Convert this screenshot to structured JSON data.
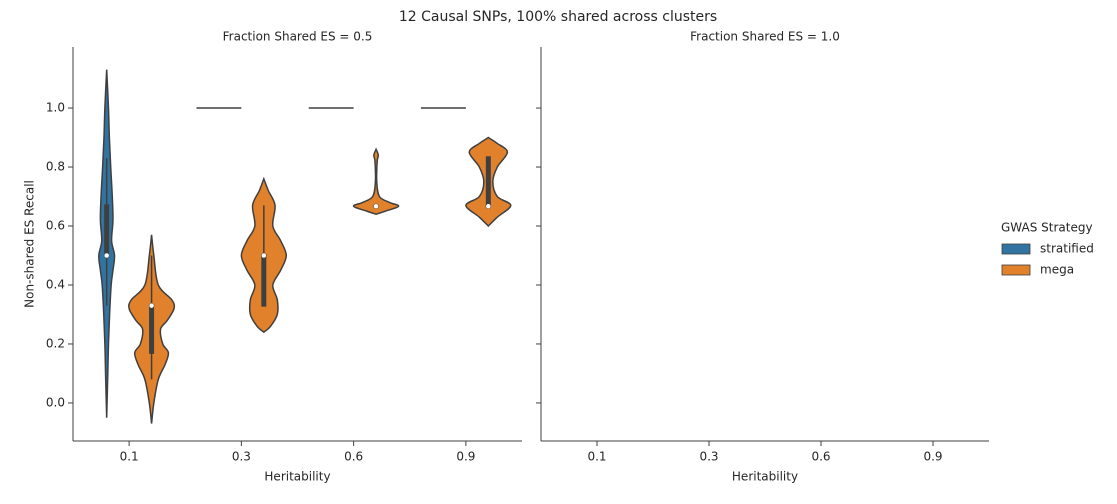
{
  "chart_data": {
    "type": "violin",
    "title": "12 Causal SNPs, 100% shared across clusters",
    "xlabel": "Heritability",
    "ylabel": "Non-shared ES Recall",
    "categories": [
      "0.1",
      "0.3",
      "0.6",
      "0.9"
    ],
    "ylim": [
      -0.129,
      1.207
    ],
    "yticks": [
      {
        "value": 0,
        "label": "0.0"
      },
      0.2,
      0.4,
      0.6,
      0.8,
      {
        "value": 1,
        "label": "1.0"
      }
    ],
    "legend_title": "GWAS Strategy",
    "legend_position": "right",
    "facets": [
      {
        "title": "Fraction Shared ES = 0.5",
        "series": [
          {
            "name": "stratified",
            "color": "#3274a1",
            "violins": [
              {
                "q1": 0.5,
                "median": 0.5,
                "q3": 0.67,
                "whisker_low": 0.33,
                "whisker_high": 0.83,
                "density_y": [
                  1.13,
                  1.0,
                  0.9,
                  0.8,
                  0.7,
                  0.62,
                  0.55,
                  0.5,
                  0.45,
                  0.4,
                  0.3,
                  0.2,
                  0.1,
                  -0.05
                ],
                "density_w": [
                  0,
                  0.08,
                  0.12,
                  0.18,
                  0.25,
                  0.28,
                  0.22,
                  0.35,
                  0.28,
                  0.2,
                  0.13,
                  0.08,
                  0.05,
                  0
                ]
              },
              {
                "q1": 1.0,
                "median": 1.0,
                "q3": 1.0
              },
              {
                "q1": 1.0,
                "median": 1.0,
                "q3": 1.0
              },
              {
                "q1": 1.0,
                "median": 1.0,
                "q3": 1.0
              }
            ]
          },
          {
            "name": "mega",
            "color": "#e1812c",
            "violins": [
              {
                "q1": 0.17,
                "median": 0.33,
                "q3": 0.33,
                "whisker_low": 0.08,
                "whisker_high": 0.5,
                "density_y": [
                  0.57,
                  0.5,
                  0.4,
                  0.35,
                  0.32,
                  0.28,
                  0.25,
                  0.2,
                  0.17,
                  0.13,
                  0.08,
                  0.0,
                  -0.07
                ],
                "density_w": [
                  0,
                  0.1,
                  0.3,
                  0.9,
                  1.0,
                  0.7,
                  0.4,
                  0.5,
                  0.75,
                  0.6,
                  0.3,
                  0.1,
                  0
                ]
              },
              {
                "q1": 0.33,
                "median": 0.5,
                "q3": 0.5,
                "whisker_low": 0.33,
                "whisker_high": 0.67,
                "density_y": [
                  0.76,
                  0.72,
                  0.67,
                  0.6,
                  0.55,
                  0.5,
                  0.45,
                  0.4,
                  0.35,
                  0.3,
                  0.26,
                  0.24
                ],
                "density_w": [
                  0,
                  0.2,
                  0.5,
                  0.4,
                  0.75,
                  1.0,
                  0.75,
                  0.4,
                  0.6,
                  0.6,
                  0.3,
                  0
                ]
              },
              {
                "q1": 0.667,
                "median": 0.667,
                "q3": 0.667,
                "whisker_low": 0.667,
                "whisker_high": 0.667,
                "density_y": [
                  0.86,
                  0.84,
                  0.82,
                  0.75,
                  0.7,
                  0.68,
                  0.667,
                  0.65,
                  0.64
                ],
                "density_w": [
                  0,
                  0.1,
                  0.05,
                  0.03,
                  0.15,
                  0.6,
                  1.0,
                  0.4,
                  0
                ]
              },
              {
                "q1": 0.667,
                "median": 0.667,
                "q3": 0.833,
                "whisker_low": 0.667,
                "whisker_high": 0.833,
                "density_y": [
                  0.9,
                  0.88,
                  0.85,
                  0.8,
                  0.75,
                  0.7,
                  0.67,
                  0.63,
                  0.6
                ],
                "density_w": [
                  0,
                  0.4,
                  0.85,
                  0.4,
                  0.2,
                  0.4,
                  1.0,
                  0.4,
                  0
                ]
              }
            ]
          }
        ]
      },
      {
        "title": "Fraction Shared ES = 1.0",
        "series": []
      }
    ]
  }
}
